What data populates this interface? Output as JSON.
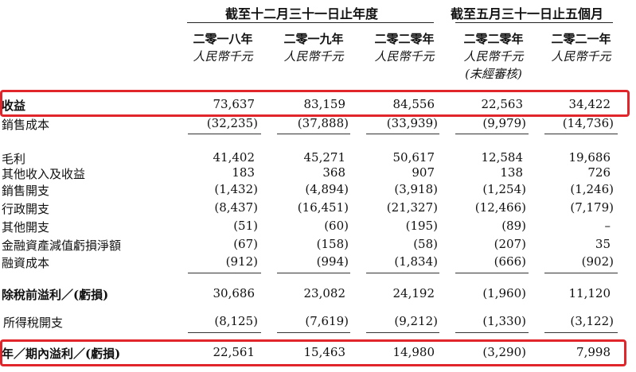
{
  "header": {
    "group1_title": "截至十二月三十一日止年度",
    "group2_title": "截至五月三十一日止五個月",
    "columns": [
      {
        "year": "二零一八年",
        "currency": "人民幣千元",
        "note": ""
      },
      {
        "year": "二零一九年",
        "currency": "人民幣千元",
        "note": ""
      },
      {
        "year": "二零二零年",
        "currency": "人民幣千元",
        "note": ""
      },
      {
        "year": "二零二零年",
        "currency": "人民幣千元",
        "note": "(未經審核)"
      },
      {
        "year": "二零二一年",
        "currency": "人民幣千元",
        "note": ""
      }
    ]
  },
  "rows": [
    {
      "label": "收益",
      "values": [
        "73,637",
        "83,159",
        "84,556",
        "22,563",
        "34,422"
      ]
    },
    {
      "label": "銷售成本",
      "values": [
        "(32,235)",
        "(37,888)",
        "(33,939)",
        "(9,979)",
        "(14,736)"
      ]
    },
    {
      "label": "毛利",
      "values": [
        "41,402",
        "45,271",
        "50,617",
        "12,584",
        "19,686"
      ]
    },
    {
      "label": "其他收入及收益",
      "values": [
        "183",
        "368",
        "907",
        "138",
        "726"
      ]
    },
    {
      "label": "銷售開支",
      "values": [
        "(1,432)",
        "(4,894)",
        "(3,918)",
        "(1,254)",
        "(1,246)"
      ]
    },
    {
      "label": "行政開支",
      "values": [
        "(8,437)",
        "(16,451)",
        "(21,327)",
        "(12,466)",
        "(7,179)"
      ]
    },
    {
      "label": "其他開支",
      "values": [
        "(51)",
        "(60)",
        "(195)",
        "(89)",
        "–"
      ]
    },
    {
      "label": "金融資產減值虧損淨額",
      "values": [
        "(67)",
        "(158)",
        "(58)",
        "(207)",
        "35"
      ]
    },
    {
      "label": "融資成本",
      "values": [
        "(912)",
        "(994)",
        "(1,834)",
        "(666)",
        "(902)"
      ]
    },
    {
      "label": "除稅前溢利／(虧損)",
      "values": [
        "30,686",
        "23,082",
        "24,192",
        "(1,960)",
        "11,120"
      ]
    },
    {
      "label": "所得稅開支",
      "values": [
        "(8,125)",
        "(7,619)",
        "(9,212)",
        "(1,330)",
        "(3,122)"
      ]
    },
    {
      "label": "年／期內溢利／(虧損)",
      "values": [
        "22,561",
        "15,463",
        "14,980",
        "(3,290)",
        "7,998"
      ]
    }
  ]
}
